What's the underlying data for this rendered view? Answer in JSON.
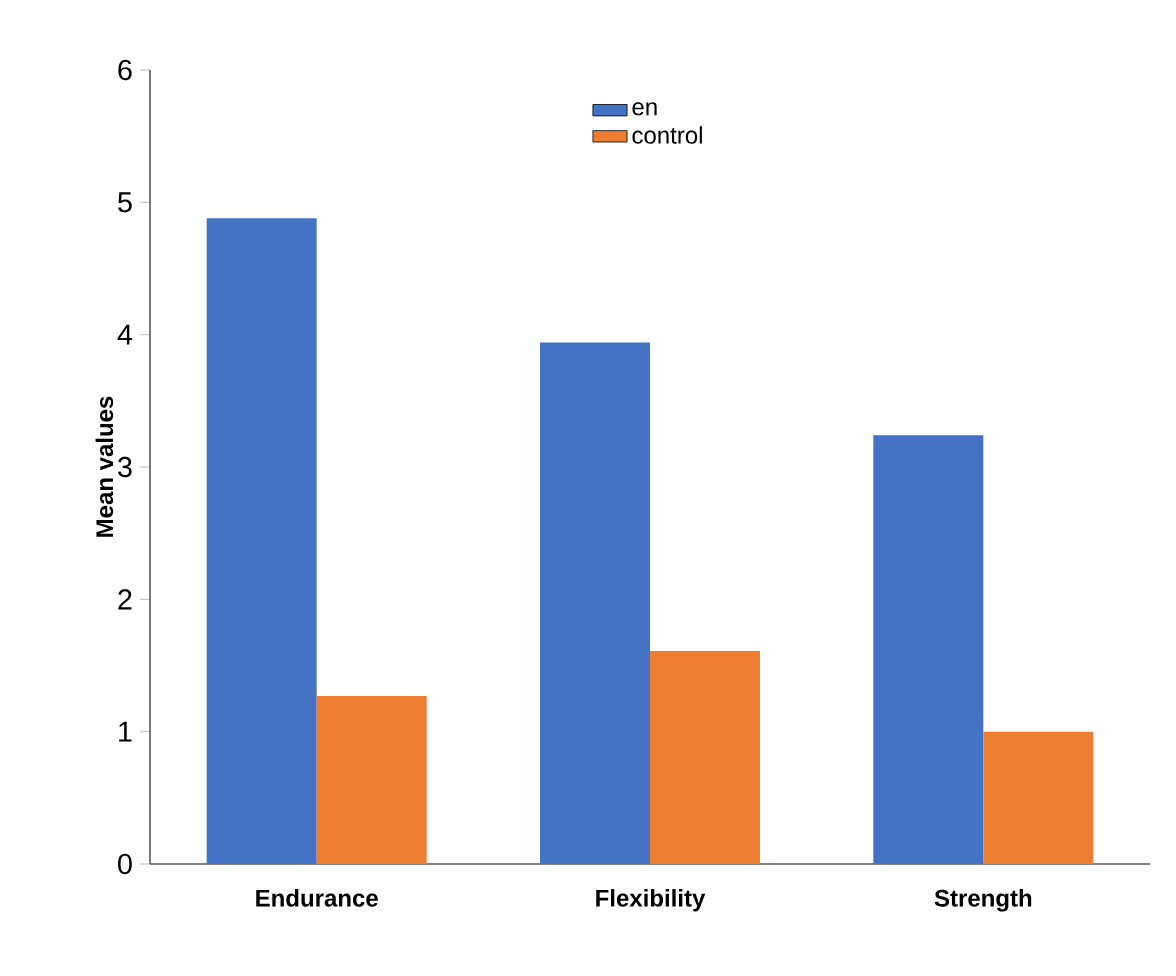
{
  "chart_data": {
    "type": "bar",
    "ylabel": "Mean values",
    "categories": [
      "Endurance",
      "Flexibility",
      "Strength"
    ],
    "series": [
      {
        "name": "en",
        "color": "#4472c4",
        "values": [
          4.88,
          3.94,
          3.24
        ]
      },
      {
        "name": "control",
        "color": "#ed7d31",
        "values": [
          1.27,
          1.61,
          1.0
        ]
      }
    ],
    "ylim": [
      0,
      6
    ],
    "yticks": [
      0,
      1,
      2,
      3,
      4,
      5,
      6
    ],
    "legend": "top"
  }
}
